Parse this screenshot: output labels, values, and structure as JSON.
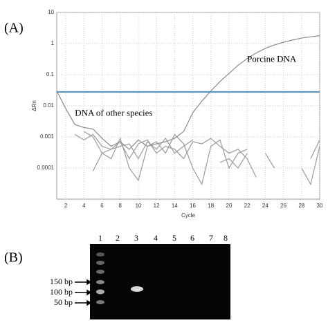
{
  "panel_labels": [
    "(A)",
    "(B)"
  ],
  "chart_data": {
    "type": "line",
    "xlabel": "Cycle",
    "ylabel": "ΔRn",
    "log_y": true,
    "grid": true,
    "x": [
      1,
      2,
      3,
      4,
      5,
      6,
      7,
      8,
      9,
      10,
      11,
      12,
      13,
      14,
      15,
      16,
      17,
      18,
      19,
      20,
      21,
      22,
      23,
      24,
      25,
      26,
      27,
      28,
      29,
      30
    ],
    "xlim": [
      1,
      30
    ],
    "xticks": [
      2,
      4,
      6,
      8,
      10,
      12,
      14,
      16,
      18,
      20,
      22,
      24,
      26,
      28,
      30
    ],
    "ylim": [
      1e-05,
      10
    ],
    "yticks": [
      0.0001,
      0.001,
      0.01,
      0.1,
      1,
      10
    ],
    "threshold": 0.028,
    "threshold_color": "#4a8fc6",
    "annotations": [
      {
        "text": "Porcine DNA",
        "x": 22,
        "y": 0.3
      },
      {
        "text": "DNA of other species",
        "x": 3,
        "y": 0.0055
      }
    ],
    "series": [
      {
        "color": "#8a8a8a",
        "values": [
          0.03,
          0.008,
          0.0025,
          0.002,
          0.0018,
          0.0009,
          0.0005,
          0.0007,
          0.0004,
          0.0008,
          0.0005,
          0.0006,
          0.0007,
          0.0009,
          0.0015,
          0.006,
          0.014,
          0.03,
          0.06,
          0.11,
          0.2,
          0.33,
          0.5,
          0.7,
          0.9,
          1.1,
          1.3,
          1.5,
          1.65,
          1.8
        ]
      },
      {
        "color": "#9a9a9a",
        "values": [
          null,
          null,
          null,
          0.0015,
          0.001,
          0.0003,
          0.0004,
          0.0007,
          0.0002,
          0.0006,
          0.0008,
          0.0003,
          0.0005,
          0.0004,
          0.0002,
          0.0007,
          0.0006,
          0.0009,
          0.0005,
          0.0003,
          0.0004,
          0.0002,
          5e-05,
          null,
          null,
          null,
          null,
          null,
          0.0002,
          0.0008
        ]
      },
      {
        "color": "#9a9a9a",
        "values": [
          null,
          null,
          null,
          null,
          8e-05,
          0.0003,
          0.0002,
          0.0009,
          0.0001,
          4e-05,
          0.0005,
          0.0007,
          0.0003,
          0.0012,
          0.0006,
          0.0001,
          3e-05,
          0.0005,
          0.0008,
          0.0001,
          0.0003,
          0.0004,
          null,
          0.0003,
          0.0001,
          null,
          null,
          0.0001,
          3e-05,
          0.0005
        ]
      },
      {
        "color": "#9a9a9a",
        "values": [
          null,
          null,
          0.0012,
          0.0008,
          0.0012,
          0.0005,
          0.0004,
          0.0005,
          0.0006,
          0.0002,
          0.0007,
          0.0004,
          0.0009,
          0.0003,
          0.0005,
          0.0008,
          null,
          null,
          0.00015,
          0.0002,
          0.0001,
          0.0003,
          null,
          null,
          null,
          null,
          null,
          null,
          null,
          null
        ]
      }
    ]
  },
  "gel": {
    "lanes": [
      "1",
      "2",
      "3",
      "4",
      "5",
      "6",
      "7",
      "8"
    ],
    "markers": [
      "150 bp",
      "100 bp",
      "50 bp"
    ]
  }
}
